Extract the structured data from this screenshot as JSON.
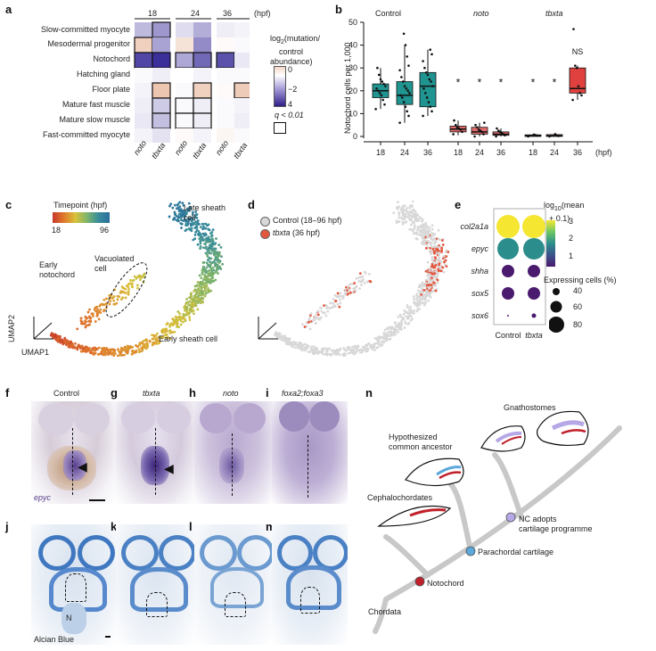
{
  "panels": {
    "a": {
      "letter": "a",
      "timepoints": [
        "18",
        "24",
        "36"
      ],
      "unit": "(hpf)",
      "rows": [
        "Slow-committed myocyte",
        "Mesodermal progenitor",
        "Notochord",
        "Hatching gland",
        "Floor plate",
        "Mature fast muscle",
        "Mature slow muscle",
        "Fast-committed myocyte"
      ],
      "cols": [
        "noto",
        "tbxta",
        "noto",
        "tbxta",
        "noto",
        "tbxta"
      ],
      "legend_title_1": "log",
      "legend_title_sub": "2",
      "legend_title_2": "(mutation/",
      "legend_title_3": "control",
      "legend_title_4": "abundance)",
      "legend_ticks": [
        "0",
        "−2",
        "4"
      ],
      "q_label": "q < 0.01",
      "colors": {
        "pos": "#e8b89e",
        "neg": "#3b2f9a",
        "zero": "#ffffff"
      },
      "values": [
        [
          -1.2,
          -1.8,
          -0.6,
          -1.4,
          -0.3,
          -0.2
        ],
        [
          1.0,
          -1.6,
          0.6,
          -2.0,
          0.1,
          -0.1
        ],
        [
          -3.2,
          -3.6,
          -1.5,
          -2.6,
          -3.0,
          -0.4
        ],
        [
          -0.1,
          -0.3,
          0.0,
          -0.2,
          -0.1,
          -0.1
        ],
        [
          -0.2,
          1.2,
          -0.1,
          1.0,
          0.1,
          1.1
        ],
        [
          -0.3,
          -0.9,
          -0.1,
          -0.3,
          -0.1,
          -0.2
        ],
        [
          -0.4,
          -1.1,
          -0.1,
          -0.3,
          -0.1,
          -0.3
        ],
        [
          -0.2,
          -0.5,
          0.1,
          -0.2,
          0.2,
          -0.1
        ]
      ],
      "significant": [
        [
          false,
          true,
          false,
          false,
          false,
          false
        ],
        [
          true,
          false,
          false,
          false,
          false,
          false
        ],
        [
          true,
          true,
          true,
          true,
          true,
          false
        ],
        [
          false,
          false,
          false,
          false,
          false,
          false
        ],
        [
          false,
          true,
          false,
          true,
          false,
          true
        ],
        [
          false,
          true,
          true,
          true,
          false,
          false
        ],
        [
          false,
          true,
          true,
          true,
          false,
          false
        ],
        [
          false,
          false,
          false,
          false,
          false,
          false
        ]
      ]
    },
    "b": {
      "letter": "b",
      "ylabel": "Notochord cells per 1,000",
      "yticks": [
        "0",
        "10",
        "20",
        "30",
        "40",
        "50"
      ],
      "groups": [
        "Control",
        "noto",
        "tbxta"
      ],
      "group_italic": [
        false,
        true,
        true
      ],
      "xticks": [
        "18",
        "24",
        "36",
        "18",
        "24",
        "36",
        "18",
        "24",
        "36"
      ],
      "unit": "(hpf)",
      "ns_label": "NS",
      "star": "*",
      "colors": {
        "control": "#1f9490",
        "mutant": "#e06a6a",
        "tbxta36": "#e0413f"
      }
    },
    "c": {
      "letter": "c",
      "timepoint_title": "Timepoint (hpf)",
      "tmin": "18",
      "tmax": "96",
      "late_sheath": "Late sheath cell",
      "early_notochord": "Early notochord",
      "vacuolated": "Vacuolated cell",
      "early_sheath": "Early sheath cell",
      "umap1": "UMAP1",
      "umap2": "UMAP2"
    },
    "d": {
      "letter": "d",
      "legend_control": "Control (18–96 hpf)",
      "legend_tbxta": "tbxta",
      "legend_tbxta_suffix": " (36 hpf)",
      "colors": {
        "control": "#d8d8d8",
        "tbxta": "#e3573f"
      }
    },
    "e": {
      "letter": "e",
      "genes": [
        "col2a1a",
        "epyc",
        "shha",
        "sox5",
        "sox6"
      ],
      "conditions": [
        "Control",
        "tbxta"
      ],
      "log_title_1": "log",
      "log_title_sub": "10",
      "log_title_2": "(mean",
      "log_title_3": "+ 0.1)",
      "log_ticks": [
        "3",
        "2",
        "1"
      ],
      "size_title": "Expressing cells (%)",
      "size_ticks": [
        "40",
        "60",
        "80"
      ]
    },
    "f": {
      "letter": "f",
      "title": "Control",
      "stain": "epyc"
    },
    "g": {
      "letter": "g",
      "title": "tbxta"
    },
    "h": {
      "letter": "h",
      "title": "noto"
    },
    "i": {
      "letter": "i",
      "title": "foxa2;foxa3"
    },
    "j": {
      "letter": "j",
      "stain": "Alcian Blue",
      "n_label": "N"
    },
    "k": {
      "letter": "k"
    },
    "l": {
      "letter": "l"
    },
    "m": {
      "letter": "m"
    },
    "n": {
      "letter": "n",
      "gnathostomes": "Gnathostomes",
      "ancestor_1": "Hypothesized",
      "ancestor_2": "common ancestor",
      "cephalochordates": "Cephalochordates",
      "nc_1": "NC adopts",
      "nc_2": "cartilage programme",
      "parachordal": "Parachordal cartilage",
      "notochord": "Notochord",
      "chordata": "Chordata",
      "colors": {
        "notochord": "#c0202a",
        "parachordal": "#5aa8dc",
        "nc": "#b6a8e6",
        "tree": "#c8c8c8"
      }
    }
  }
}
